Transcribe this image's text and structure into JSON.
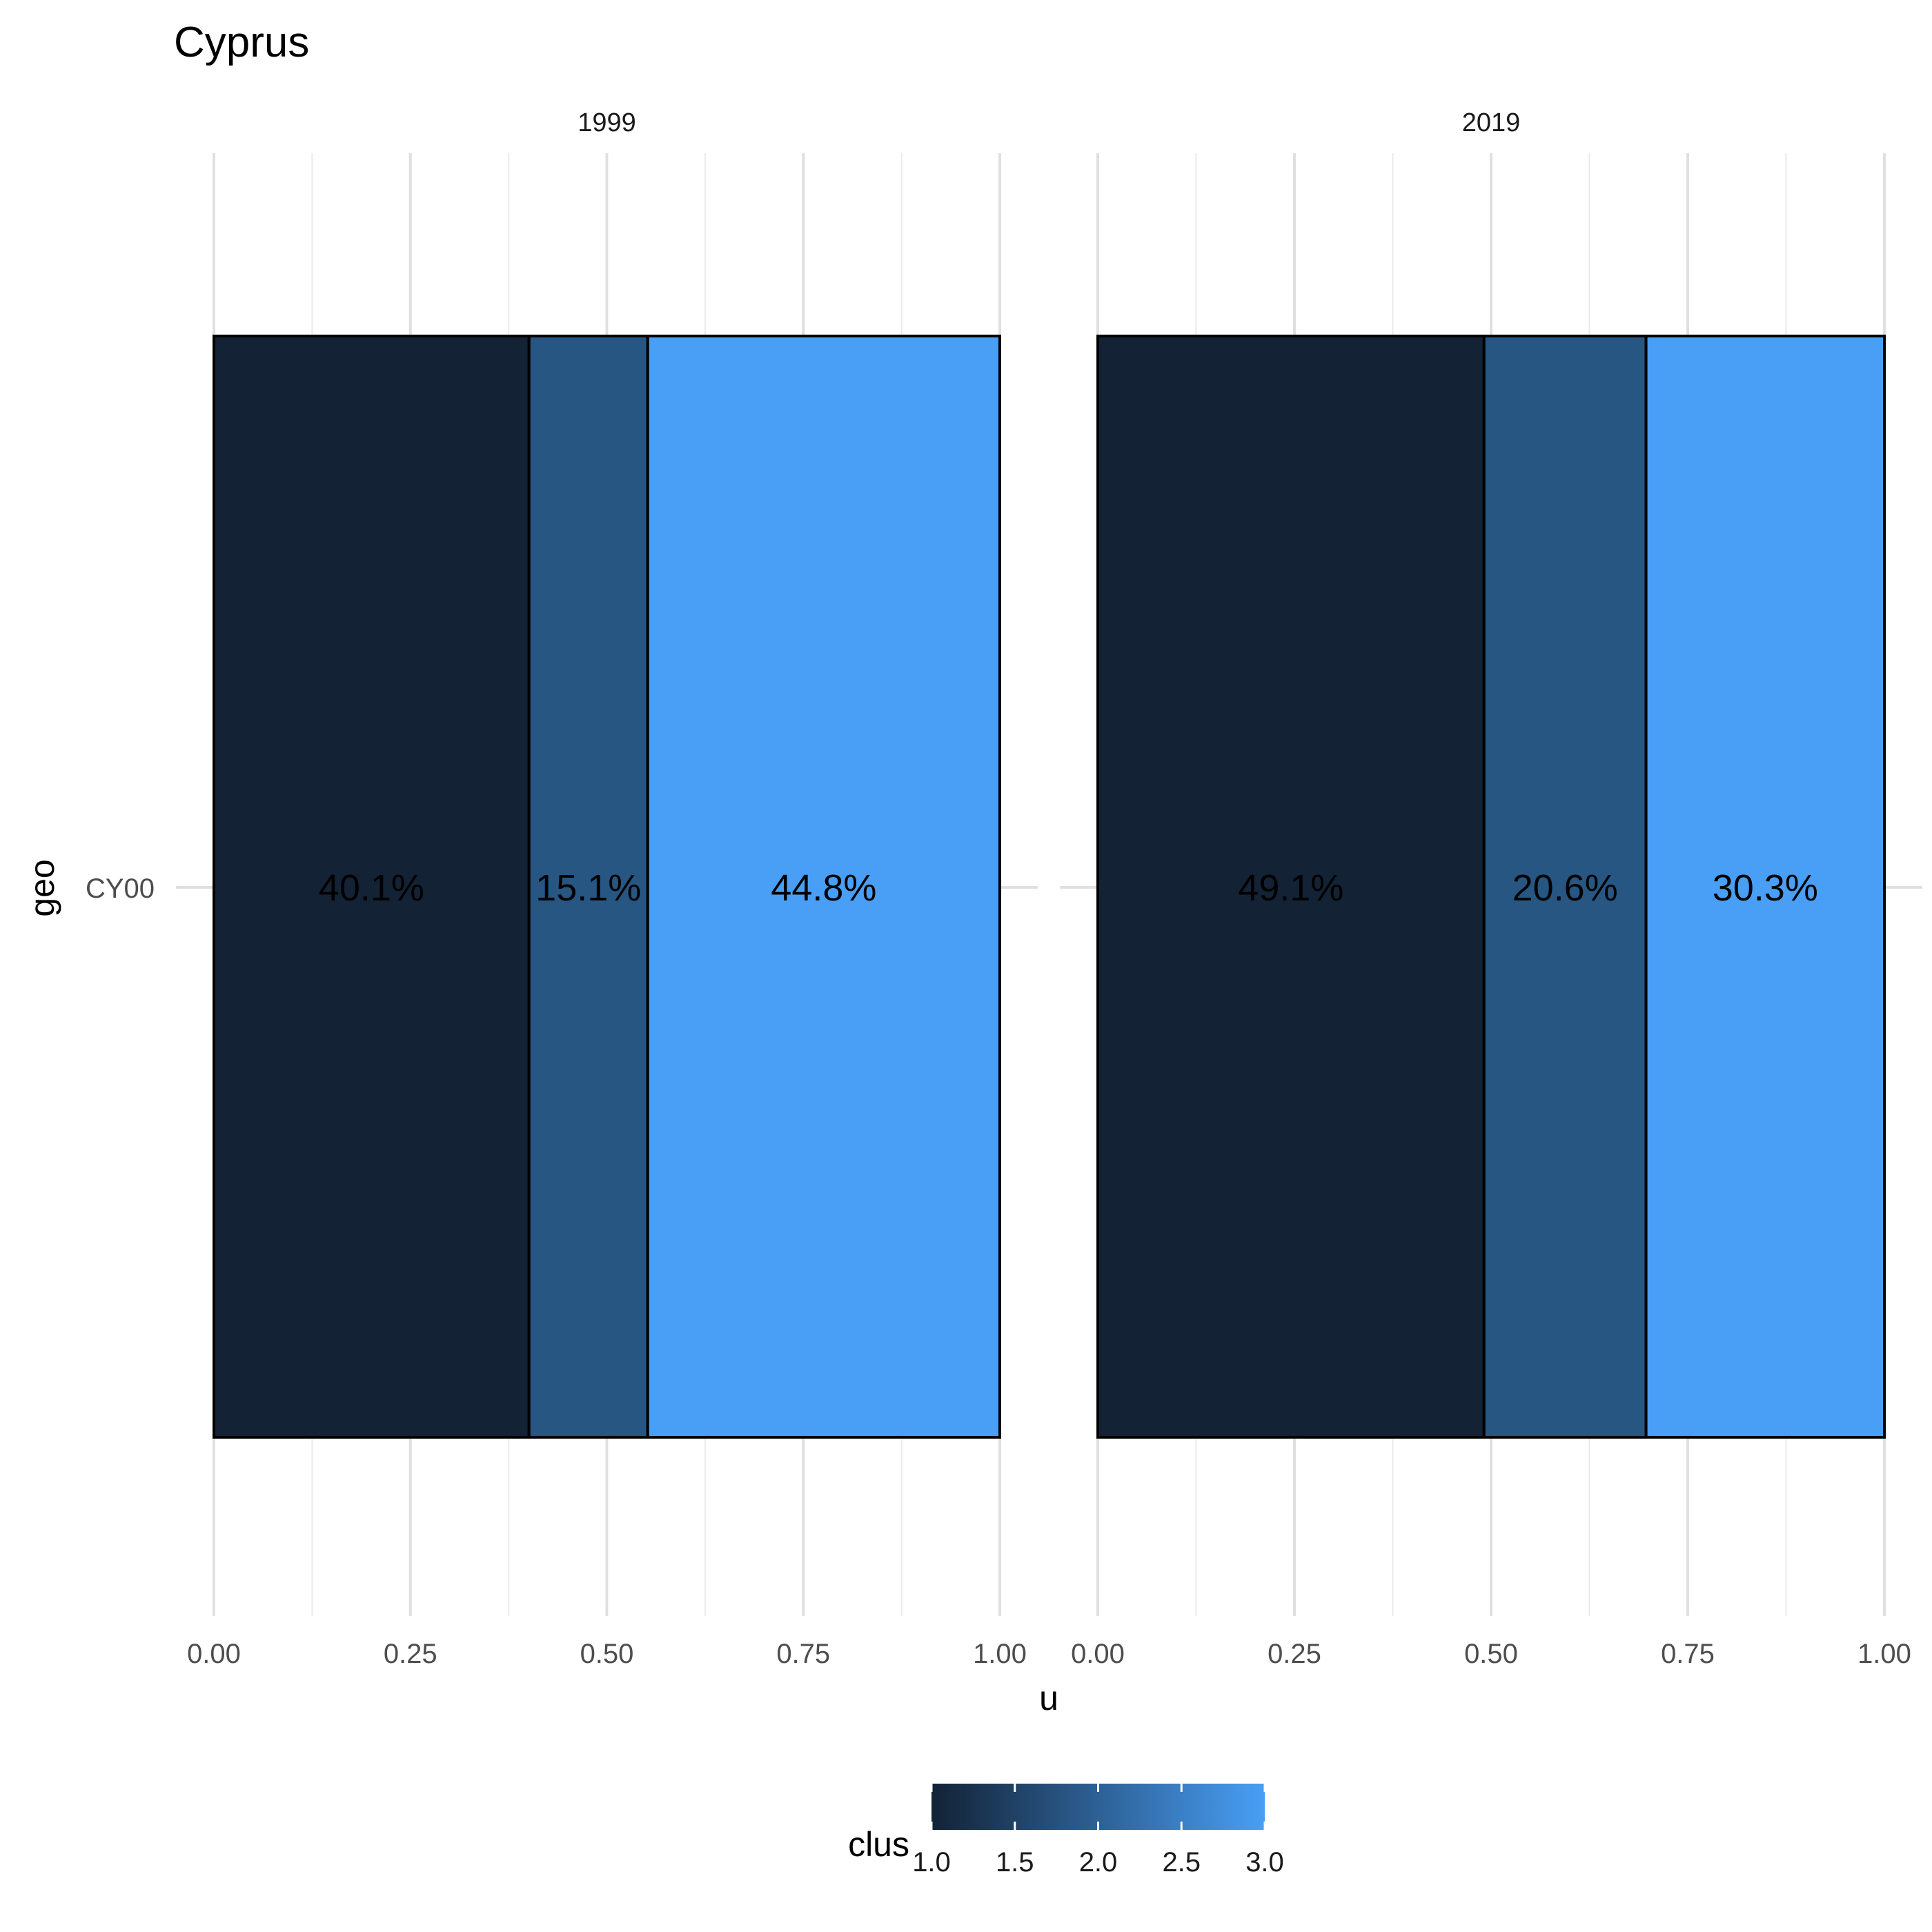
{
  "chart_data": {
    "type": "bar",
    "orientation": "horizontal-stacked",
    "title": "Cyprus",
    "xlabel": "u",
    "ylabel": "geo",
    "categories": [
      "CY00"
    ],
    "xlim": [
      0,
      1
    ],
    "x_ticks": [
      "0.00",
      "0.25",
      "0.50",
      "0.75",
      "1.00"
    ],
    "grid": true,
    "facets": [
      {
        "label": "1999",
        "segments": [
          {
            "clus": 1,
            "value": 0.401,
            "label": "40.1%",
            "color": "#132235"
          },
          {
            "clus": 2,
            "value": 0.151,
            "label": "15.1%",
            "color": "#275683"
          },
          {
            "clus": 3,
            "value": 0.448,
            "label": "44.8%",
            "color": "#489ff5"
          }
        ]
      },
      {
        "label": "2019",
        "segments": [
          {
            "clus": 1,
            "value": 0.491,
            "label": "49.1%",
            "color": "#132235"
          },
          {
            "clus": 2,
            "value": 0.206,
            "label": "20.6%",
            "color": "#275683"
          },
          {
            "clus": 3,
            "value": 0.303,
            "label": "30.3%",
            "color": "#489ff5"
          }
        ]
      }
    ],
    "legend": {
      "title": "clus",
      "position": "bottom",
      "type": "colorbar",
      "range": [
        1.0,
        3.0
      ],
      "ticks": [
        "1.0",
        "1.5",
        "2.0",
        "2.5",
        "3.0"
      ],
      "low_color": "#132235",
      "high_color": "#489ff5"
    }
  }
}
